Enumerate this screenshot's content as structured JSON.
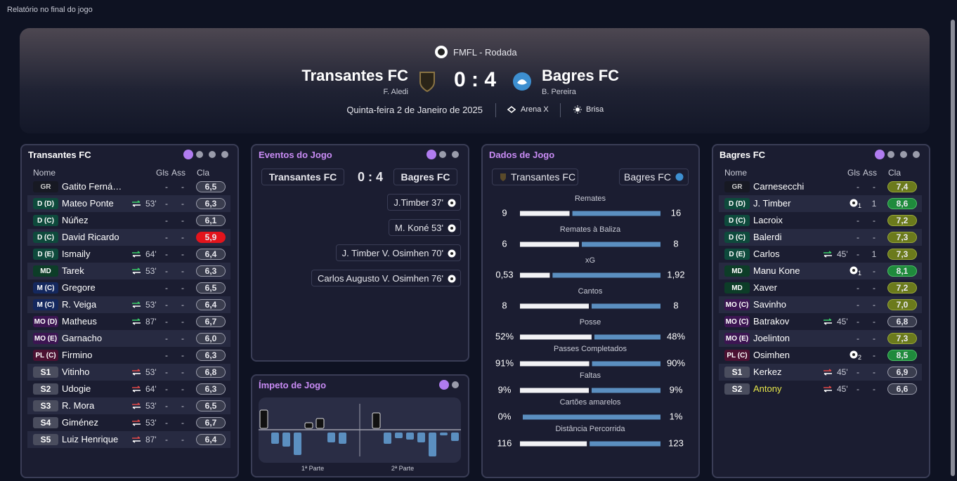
{
  "window_title": "Relatório no final do jogo",
  "header": {
    "competition": "FMFL - Rodada",
    "home_team": "Transantes FC",
    "home_manager": "F. Aledi",
    "score": "0 : 4",
    "away_team": "Bagres FC",
    "away_manager": "B. Pereira",
    "date": "Quinta-feira 2 de Janeiro de 2025",
    "stadium": "Arena X",
    "weather": "Brisa"
  },
  "home_panel": {
    "title": "Transantes FC",
    "columns": [
      "Nome",
      "Gls",
      "Ass",
      "Cla"
    ],
    "players": [
      {
        "position": "GR",
        "name": "Gatito Ferná…",
        "goals": "-",
        "assists": "-",
        "rating": "6,5"
      },
      {
        "position": "D (D)",
        "name": "Mateo Ponte",
        "sub_minute": "53'",
        "goals": "-",
        "assists": "-",
        "rating": "6,3"
      },
      {
        "position": "D (C)",
        "name": "Núñez",
        "goals": "-",
        "assists": "-",
        "rating": "6,1"
      },
      {
        "position": "D (C)",
        "name": "David Ricardo",
        "goals": "-",
        "assists": "-",
        "rating": "5,9"
      },
      {
        "position": "D (E)",
        "name": "Ismaily",
        "sub_minute": "64'",
        "goals": "-",
        "assists": "-",
        "rating": "6,4"
      },
      {
        "position": "MD",
        "name": "Tarek",
        "sub_minute": "53'",
        "goals": "-",
        "assists": "-",
        "rating": "6,3"
      },
      {
        "position": "M (C)",
        "name": "Gregore",
        "goals": "-",
        "assists": "-",
        "rating": "6,5"
      },
      {
        "position": "M (C)",
        "name": "R. Veiga",
        "sub_minute": "53'",
        "goals": "-",
        "assists": "-",
        "rating": "6,4"
      },
      {
        "position": "MO (D)",
        "name": "Matheus",
        "sub_minute": "87'",
        "goals": "-",
        "assists": "-",
        "rating": "6,7"
      },
      {
        "position": "MO (E)",
        "name": "Garnacho",
        "goals": "-",
        "assists": "-",
        "rating": "6,0"
      },
      {
        "position": "PL (C)",
        "name": "Firmino",
        "goals": "-",
        "assists": "-",
        "rating": "6,3"
      },
      {
        "position": "S1",
        "name": "Vitinho",
        "sub_minute": "53'",
        "goals": "-",
        "assists": "-",
        "rating": "6,8"
      },
      {
        "position": "S2",
        "name": "Udogie",
        "sub_minute": "64'",
        "goals": "-",
        "assists": "-",
        "rating": "6,3"
      },
      {
        "position": "S3",
        "name": "R. Mora",
        "sub_minute": "53'",
        "goals": "-",
        "assists": "-",
        "rating": "6,5"
      },
      {
        "position": "S4",
        "name": "Giménez",
        "sub_minute": "53'",
        "goals": "-",
        "assists": "-",
        "rating": "6,7"
      },
      {
        "position": "S5",
        "name": "Luiz Henrique",
        "sub_minute": "87'",
        "goals": "-",
        "assists": "-",
        "rating": "6,4"
      }
    ]
  },
  "away_panel": {
    "title": "Bagres FC",
    "columns": [
      "Nome",
      "Gls",
      "Ass",
      "Cla"
    ],
    "players": [
      {
        "position": "GR",
        "name": "Carnesecchi",
        "goals": "-",
        "assists": "-",
        "rating": "7,4"
      },
      {
        "position": "D (D)",
        "name": "J. Timber",
        "goals": 1,
        "assists": 1,
        "rating": "8,6"
      },
      {
        "position": "D (C)",
        "name": "Lacroix",
        "goals": "-",
        "assists": "-",
        "rating": "7,2"
      },
      {
        "position": "D (C)",
        "name": "Balerdi",
        "goals": "-",
        "assists": "-",
        "rating": "7,3"
      },
      {
        "position": "D (E)",
        "name": "Carlos",
        "sub_minute": "45'",
        "goals": "-",
        "assists": 1,
        "rating": "7,3"
      },
      {
        "position": "MD",
        "name": "Manu Kone",
        "goals": 1,
        "assists": "-",
        "rating": "8,1"
      },
      {
        "position": "MD",
        "name": "Xaver",
        "goals": "-",
        "assists": "-",
        "rating": "7,2"
      },
      {
        "position": "MO (C)",
        "name": "Savinho",
        "goals": "-",
        "assists": "-",
        "rating": "7,0"
      },
      {
        "position": "MO (C)",
        "name": "Batrakov",
        "sub_minute": "45'",
        "goals": "-",
        "assists": "-",
        "rating": "6,8"
      },
      {
        "position": "MO (E)",
        "name": "Joelinton",
        "goals": "-",
        "assists": "-",
        "rating": "7,3"
      },
      {
        "position": "PL (C)",
        "name": "Osimhen",
        "goals": 2,
        "assists": "-",
        "rating": "8,5"
      },
      {
        "position": "S1",
        "name": "Kerkez",
        "sub_minute": "45'",
        "goals": "-",
        "assists": "-",
        "rating": "6,9"
      },
      {
        "position": "S2",
        "name": "Antony",
        "sub_minute": "45'",
        "goals": "-",
        "assists": "-",
        "rating": "6,6",
        "name_color": "#e6e64a"
      }
    ]
  },
  "events": {
    "title": "Eventos do Jogo",
    "home_team": "Transantes FC",
    "score": "0 : 4",
    "away_team": "Bagres FC",
    "items": [
      "J.Timber 37'",
      "M. Koné 53'",
      "J. Timber V. Osimhen 70'",
      "Carlos Augusto V. Osimhen 76'"
    ]
  },
  "momentum": {
    "title": "Ímpeto de Jogo",
    "bars": [
      26,
      -16,
      -20,
      -32,
      8,
      14,
      -14,
      -16,
      null,
      null,
      22,
      -16,
      -8,
      -10,
      -14,
      -34,
      -4,
      -12
    ],
    "labels": [
      "1ª Parte",
      "2ª Parte"
    ]
  },
  "stats": {
    "title": "Dados de Jogo",
    "home_team": "Transantes FC",
    "away_team": "Bagres FC",
    "rows": [
      {
        "label": "Remates",
        "home": 9,
        "away": 16
      },
      {
        "label": "Remates à Baliza",
        "home": 6,
        "away": 8
      },
      {
        "label": "xG",
        "home": 0.53,
        "away": 1.92,
        "home_label": "0,53",
        "away_label": "1,92"
      },
      {
        "label": "Cantos",
        "home": 8,
        "away": 8
      },
      {
        "label": "Posse",
        "home": 52,
        "away": 48,
        "home_label": "52%",
        "away_label": "48%"
      },
      {
        "label": "Passes Completados",
        "home": 91,
        "away": 90,
        "home_label": "91%",
        "away_label": "90%"
      },
      {
        "label": "Faltas",
        "home": 9,
        "away": 9,
        "home_label": "9%",
        "away_label": "9%"
      },
      {
        "label": "Cartões amarelos",
        "home": 0,
        "away": 1,
        "home_label": "0%",
        "away_label": "1%"
      },
      {
        "label": "Distância Percorrida",
        "home": 116,
        "away": 123
      }
    ]
  }
}
